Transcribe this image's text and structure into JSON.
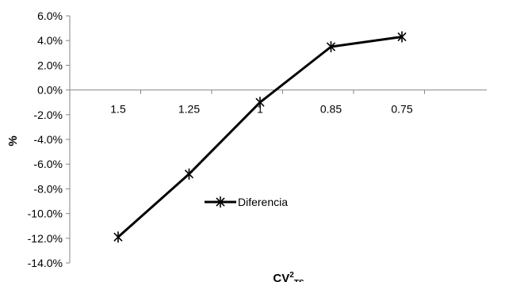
{
  "chart_data": {
    "type": "line",
    "categories": [
      "1.5",
      "1.25",
      "1",
      "0.85",
      "0.75"
    ],
    "series": [
      {
        "name": "Diferencia",
        "values": [
          -11.9,
          -6.8,
          -1.0,
          3.5,
          4.3
        ],
        "color": "#000000"
      }
    ],
    "ylim": [
      -14,
      6
    ],
    "ytick_step": 2,
    "ytick_labels": [
      "6.0%",
      "4.0%",
      "2.0%",
      "0.0%",
      "-2.0%",
      "-4.0%",
      "-6.0%",
      "-8.0%",
      "-10.0%",
      "-12.0%",
      "-14.0%"
    ],
    "xlabel": {
      "base": "CV",
      "sup": "2",
      "sub": "TS"
    },
    "ylabel": "%",
    "grid": false,
    "legend": {
      "position": "center-left-inside",
      "marker": "asterisk"
    },
    "category_labels_position": "below-zero-line"
  }
}
